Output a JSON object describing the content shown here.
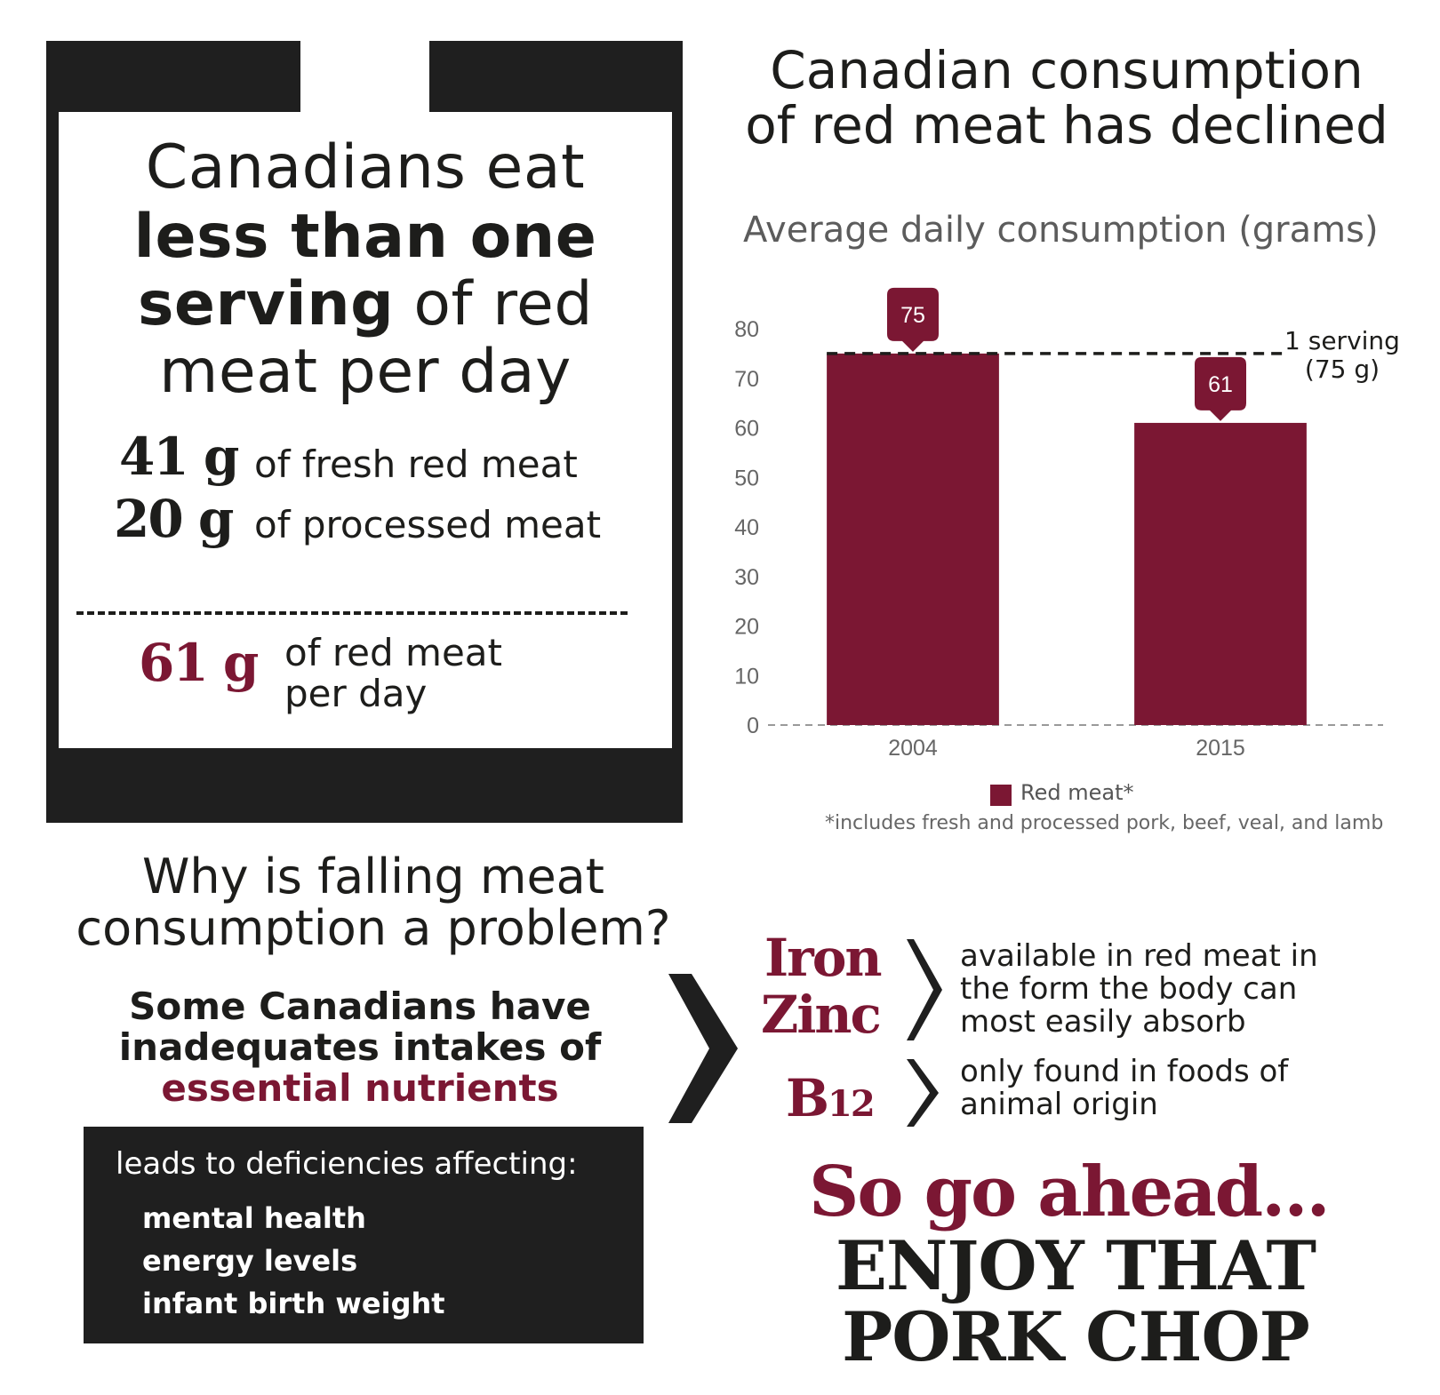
{
  "headline": {
    "line1": "Canadians eat",
    "line2": "less than one",
    "line3_bold": "serving",
    "line3_light": " of red",
    "line4": "meat per day"
  },
  "stats": {
    "fresh_value": "41 g",
    "fresh_label": "of fresh red meat",
    "processed_value": "20 g",
    "processed_label": "of processed meat",
    "total_value": "61 g",
    "total_label_1": "of red meat",
    "total_label_2": "per day"
  },
  "chart_title": {
    "line1": "Canadian consumption",
    "line2": "of red meat has declined"
  },
  "chart_data": {
    "type": "bar",
    "title": "Average daily consumption (grams)",
    "categories": [
      "2004",
      "2015"
    ],
    "series": [
      {
        "name": "Red meat*",
        "values": [
          75,
          61
        ]
      }
    ],
    "value_labels": [
      "75",
      "61"
    ],
    "ylim": [
      0,
      80
    ],
    "yticks": [
      "0",
      "10",
      "20",
      "30",
      "40",
      "50",
      "60",
      "70",
      "80"
    ],
    "reference_line": {
      "value": 75,
      "label_1": "1 serving",
      "label_2": "(75 g)"
    },
    "footnote": "*includes fresh and processed pork, beef, veal, and lamb",
    "legend_position": "bottom",
    "bar_color": "#7b1733"
  },
  "why": {
    "line1": "Why is falling meat",
    "line2": "consumption a problem?"
  },
  "inadequate": {
    "line1": "Some Canadians have",
    "line2": "inadequates intakes of",
    "line3": "essential nutrients"
  },
  "deficiencies": {
    "intro": "leads to deficiencies affecting:",
    "items": [
      "mental health",
      "energy levels",
      "infant birth weight"
    ]
  },
  "nutrients": {
    "iron": "Iron",
    "zinc": "Zinc",
    "b": "B",
    "b_sub": "12",
    "iron_zinc_text": [
      "available in red meat in",
      "the form the body can",
      "most easily absorb"
    ],
    "b12_text": [
      "only found in foods of",
      "animal origin"
    ]
  },
  "closing": {
    "line1": "So go ahead...",
    "line2": "ENJOY THAT",
    "line3": "PORK CHOP"
  },
  "colors": {
    "accent": "#7b1733",
    "dark": "#1f1f1f"
  }
}
